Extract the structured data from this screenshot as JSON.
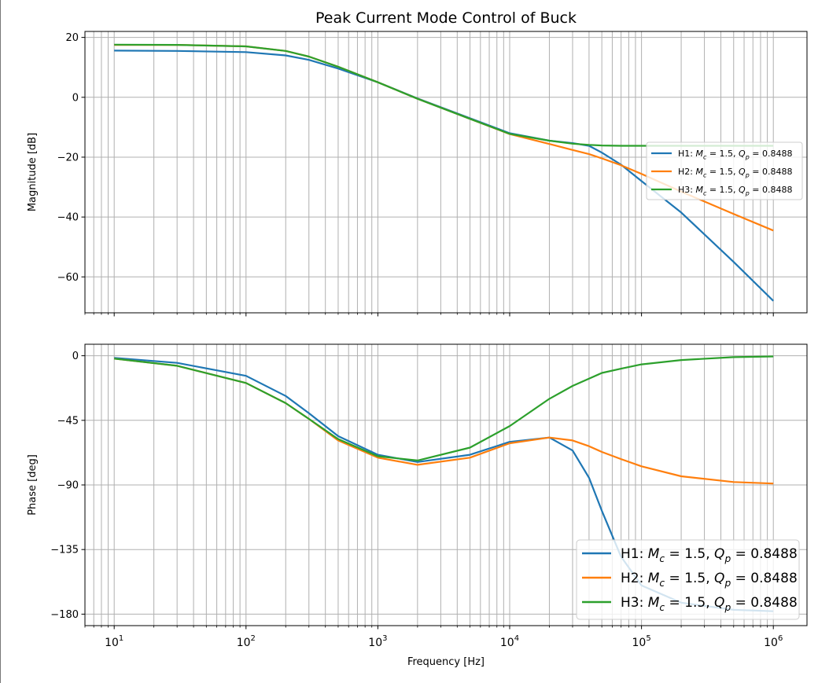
{
  "chart_data": {
    "type": "line",
    "title": "Peak Current Mode Control of Buck",
    "xlabel": "Frequency [Hz]",
    "xscale": "log",
    "xlim": [
      6,
      1800000
    ],
    "grid": true,
    "series_meta": [
      {
        "prefix": "H1: ",
        "mc": "1.5",
        "qp": "0.8488",
        "color": "#1f77b4"
      },
      {
        "prefix": "H2: ",
        "mc": "1.5",
        "qp": "0.8488",
        "color": "#ff7f0e"
      },
      {
        "prefix": "H3: ",
        "mc": "1.5",
        "qp": "0.8488",
        "color": "#2ca02c"
      }
    ],
    "x_ticks": [
      {
        "base": "10",
        "exp": "1"
      },
      {
        "base": "10",
        "exp": "2"
      },
      {
        "base": "10",
        "exp": "3"
      },
      {
        "base": "10",
        "exp": "4"
      },
      {
        "base": "10",
        "exp": "5"
      },
      {
        "base": "10",
        "exp": "6"
      }
    ],
    "x": [
      10,
      30,
      100,
      200,
      300,
      500,
      1000,
      2000,
      5000,
      10000,
      20000,
      30000,
      40000,
      50000,
      70000,
      100000,
      200000,
      500000,
      1000000
    ],
    "subplots": [
      {
        "ylabel": "Magnitude [dB]",
        "ylim": [
          -72,
          22
        ],
        "yticks": [
          20,
          0,
          -20,
          -40,
          -60
        ],
        "ytick_labels": [
          "20",
          "0",
          "−20",
          "−40",
          "−60"
        ],
        "legend": "center-right",
        "series": [
          {
            "values": [
              15.6,
              15.5,
              15.1,
              14.0,
              12.5,
              9.6,
              5.0,
              -0.4,
              -7.0,
              -12.0,
              -14.5,
              -15.3,
              -16.2,
              -18.5,
              -22.5,
              -28.0,
              -38.5,
              -55.0,
              -68.0
            ]
          },
          {
            "values": [
              17.5,
              17.5,
              17.0,
              15.5,
              13.6,
              10.2,
              5.0,
              -0.5,
              -7.2,
              -12.3,
              -15.6,
              -17.6,
              -19.0,
              -20.4,
              -22.7,
              -25.6,
              -31.5,
              -39.0,
              -44.5
            ]
          },
          {
            "values": [
              17.6,
              17.5,
              17.0,
              15.5,
              13.6,
              10.2,
              5.0,
              -0.5,
              -7.2,
              -12.2,
              -14.5,
              -15.5,
              -15.9,
              -16.1,
              -16.2,
              -16.2,
              -16.2,
              -16.2,
              -16.2
            ]
          }
        ]
      },
      {
        "ylabel": "Phase [deg]",
        "ylim": [
          -188,
          8
        ],
        "yticks": [
          0,
          -45,
          -90,
          -135,
          -180
        ],
        "ytick_labels": [
          "0",
          "−45",
          "−90",
          "−135",
          "−180"
        ],
        "legend": "lower-right",
        "series": [
          {
            "values": [
              -1.5,
              -5,
              -14,
              -28,
              -40,
              -56,
              -69,
              -74,
              -69,
              -60,
              -57,
              -66,
              -85,
              -108,
              -140,
              -160,
              -172,
              -177,
              -178
            ]
          },
          {
            "values": [
              -2,
              -7,
              -19,
              -33,
              -44,
              -59,
              -71,
              -76,
              -71,
              -61,
              -57,
              -59,
              -63,
              -67,
              -72,
              -77,
              -84,
              -88,
              -89
            ]
          },
          {
            "values": [
              -2,
              -7,
              -19,
              -33,
              -44,
              -58,
              -70,
              -73,
              -64,
              -49,
              -30,
              -21,
              -16,
              -12,
              -9,
              -6,
              -3,
              -1,
              -0.5
            ]
          }
        ]
      }
    ]
  }
}
